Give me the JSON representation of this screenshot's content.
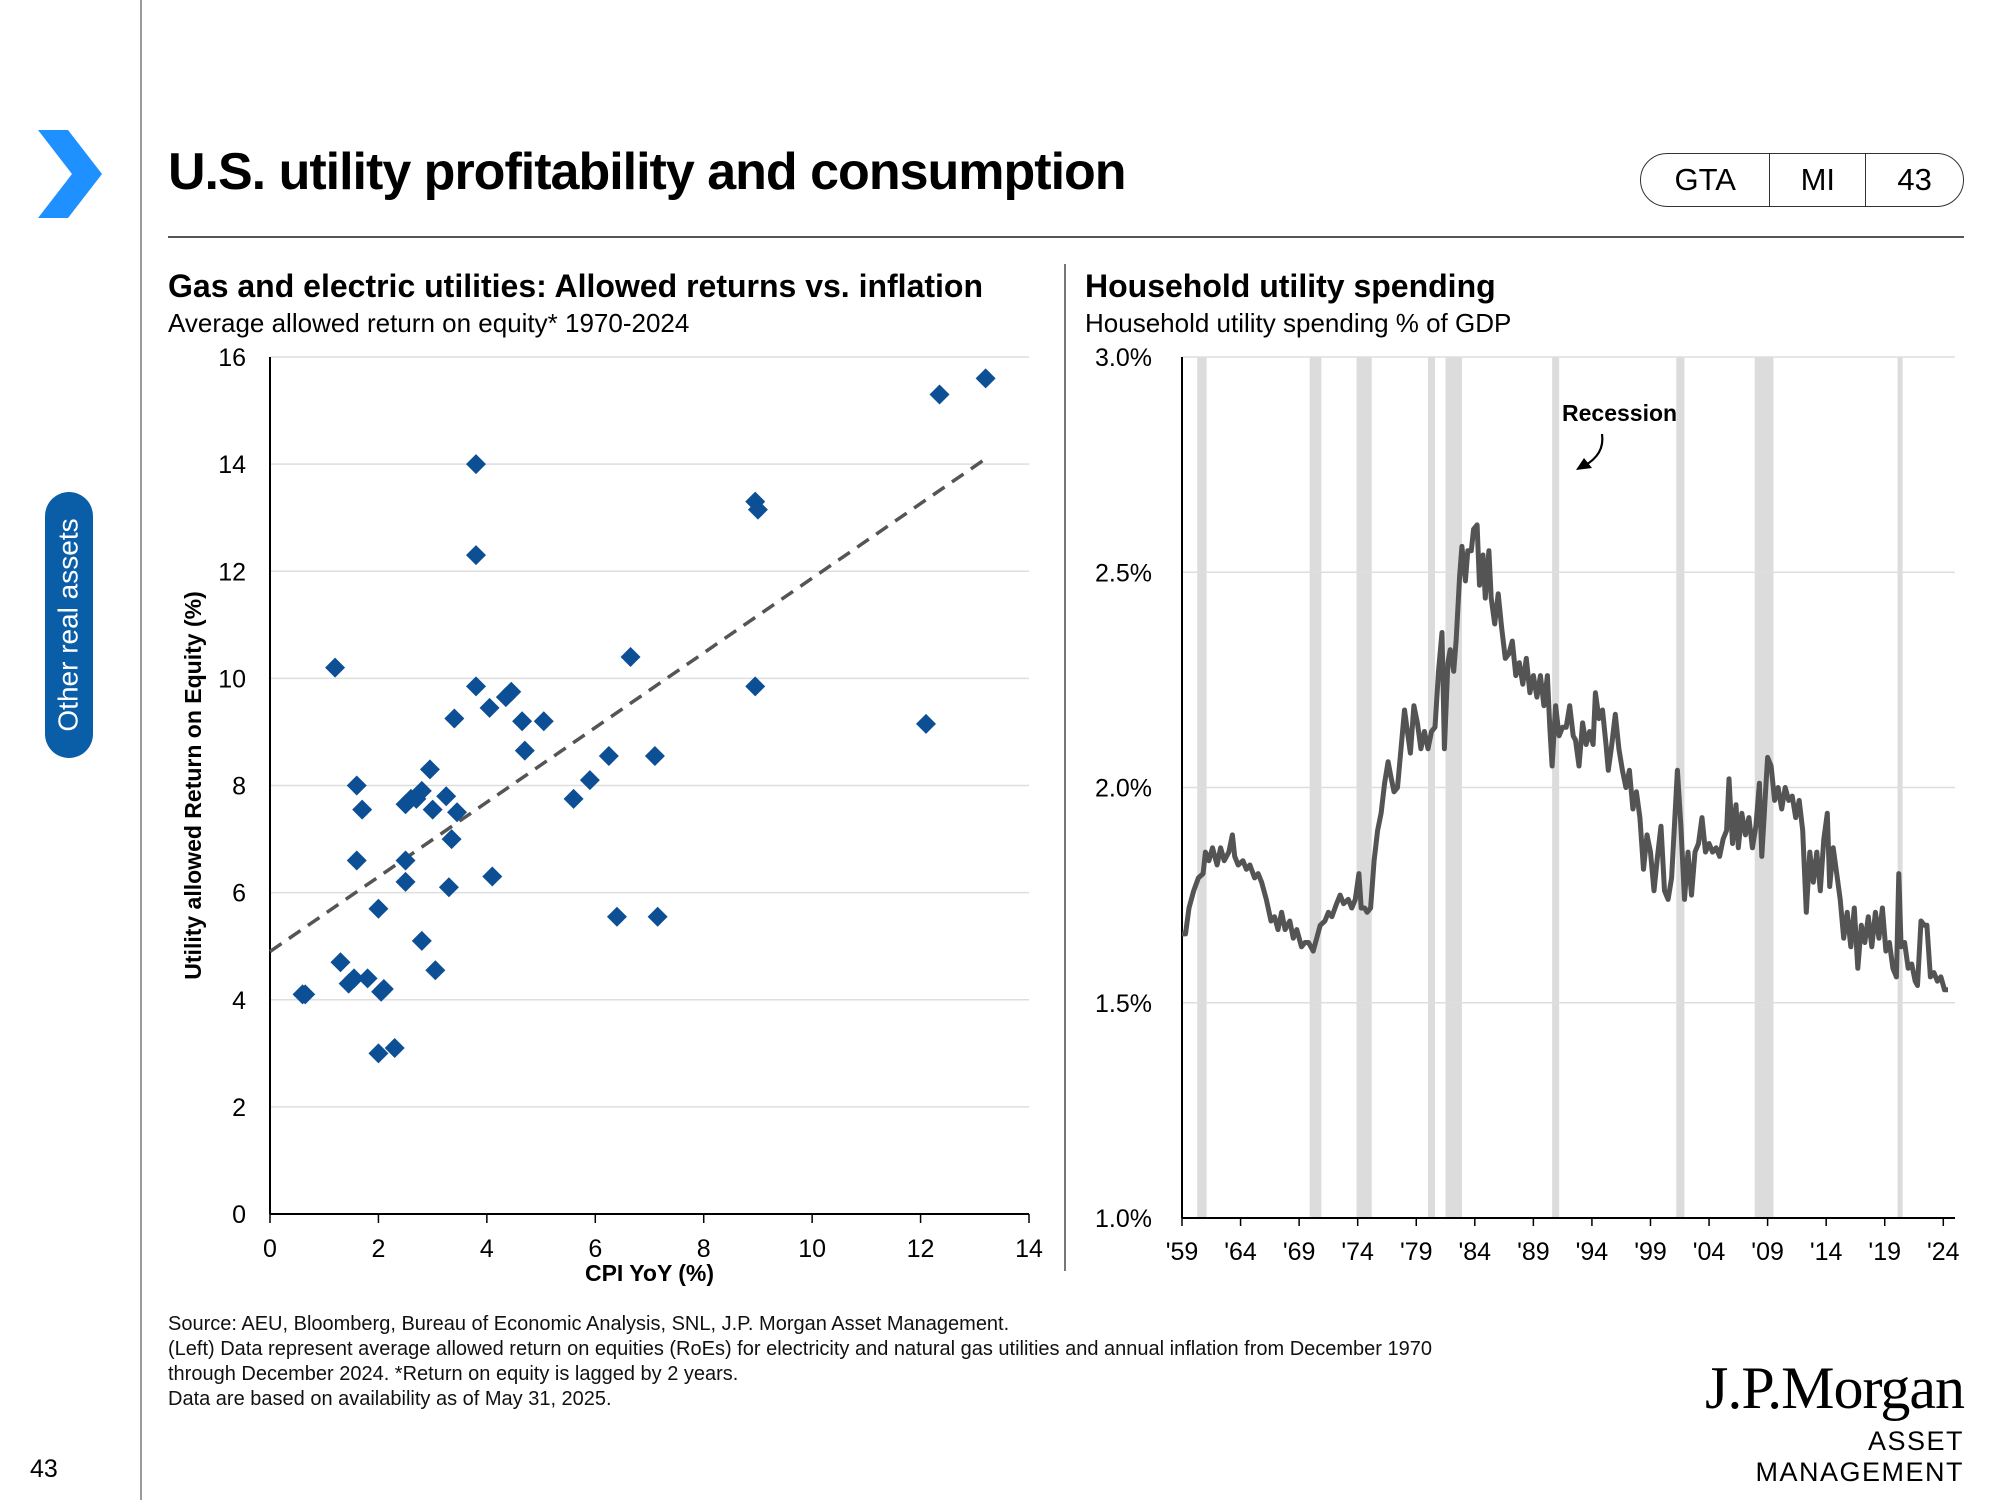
{
  "page": {
    "title": "U.S. utility profitability and consumption",
    "tags": [
      "GTA",
      "MI",
      "43"
    ],
    "side_tab": "Other real assets",
    "page_number": "43",
    "accent_color": "#0a5ea8",
    "chevron_color": "#1e90ff"
  },
  "left_chart": {
    "title": "Gas and electric utilities: Allowed returns vs. inflation",
    "subtitle": "Average allowed return on equity* 1970-2024"
  },
  "right_chart": {
    "title": "Household utility spending",
    "subtitle": "Household utility spending % of GDP"
  },
  "footnote": {
    "lines": [
      "Source: AEU, Bloomberg, Bureau of Economic Analysis, SNL, J.P. Morgan Asset Management.",
      "(Left) Data represent average allowed return on equities (RoEs) for electricity and natural gas utilities and annual inflation from December 1970",
      "through December 2024. *Return on equity is lagged by 2 years.",
      "Data are based on availability as of May 31, 2025."
    ]
  },
  "logo": {
    "name": "J.P.Morgan",
    "sub": "ASSET MANAGEMENT"
  },
  "chart_data": [
    {
      "type": "scatter",
      "title": "Gas and electric utilities: Allowed returns vs. inflation",
      "xlabel": "CPI YoY (%)",
      "ylabel": "Utility allowed Return on Equity (%)",
      "xlim": [
        0,
        14
      ],
      "ylim": [
        0,
        16
      ],
      "xticks": [
        "0",
        "2",
        "4",
        "6",
        "8",
        "10",
        "12",
        "14"
      ],
      "yticks": [
        "0",
        "2",
        "4",
        "6",
        "8",
        "10",
        "12",
        "14",
        "16"
      ],
      "marker_color": "#0d4f94",
      "trendline": {
        "x": [
          0,
          13.2
        ],
        "y": [
          4.9,
          14.1
        ],
        "style": "dashed",
        "color": "#555555"
      },
      "points": [
        [
          0.6,
          4.1
        ],
        [
          0.65,
          4.1
        ],
        [
          1.2,
          10.2
        ],
        [
          1.3,
          4.7
        ],
        [
          1.45,
          4.3
        ],
        [
          1.55,
          4.4
        ],
        [
          1.6,
          6.6
        ],
        [
          1.6,
          8.0
        ],
        [
          1.7,
          7.55
        ],
        [
          1.8,
          4.4
        ],
        [
          2.0,
          3.0
        ],
        [
          2.0,
          5.7
        ],
        [
          2.05,
          4.15
        ],
        [
          2.1,
          4.2
        ],
        [
          2.3,
          3.1
        ],
        [
          2.5,
          6.2
        ],
        [
          2.5,
          6.6
        ],
        [
          2.5,
          7.65
        ],
        [
          2.6,
          7.75
        ],
        [
          2.7,
          7.75
        ],
        [
          2.8,
          5.1
        ],
        [
          2.8,
          7.9
        ],
        [
          2.95,
          8.3
        ],
        [
          3.0,
          7.55
        ],
        [
          3.05,
          4.55
        ],
        [
          3.25,
          7.8
        ],
        [
          3.3,
          6.1
        ],
        [
          3.35,
          7.0
        ],
        [
          3.4,
          9.25
        ],
        [
          3.45,
          7.5
        ],
        [
          3.8,
          14.0
        ],
        [
          3.8,
          12.3
        ],
        [
          3.8,
          9.85
        ],
        [
          4.05,
          9.45
        ],
        [
          4.1,
          6.3
        ],
        [
          4.35,
          9.65
        ],
        [
          4.45,
          9.75
        ],
        [
          4.65,
          9.2
        ],
        [
          4.7,
          8.65
        ],
        [
          5.05,
          9.2
        ],
        [
          5.6,
          7.75
        ],
        [
          5.9,
          8.1
        ],
        [
          6.25,
          8.55
        ],
        [
          6.4,
          5.55
        ],
        [
          6.65,
          10.4
        ],
        [
          7.1,
          8.55
        ],
        [
          7.15,
          5.55
        ],
        [
          8.95,
          13.3
        ],
        [
          9.0,
          13.15
        ],
        [
          8.95,
          9.85
        ],
        [
          12.1,
          9.15
        ],
        [
          12.35,
          15.3
        ],
        [
          13.2,
          15.6
        ]
      ]
    },
    {
      "type": "line",
      "title": "Household utility spending",
      "ylabel": "Household utility spending % of GDP",
      "xlim": [
        1959,
        2025
      ],
      "ylim": [
        1.0,
        3.0
      ],
      "xticks": [
        "'59",
        "'64",
        "'69",
        "'74",
        "'79",
        "'84",
        "'89",
        "'94",
        "'99",
        "'04",
        "'09",
        "'14",
        "'19",
        "'24"
      ],
      "yticks": [
        "1.0%",
        "1.5%",
        "2.0%",
        "2.5%",
        "3.0%"
      ],
      "line_color": "#545454",
      "recession_color": "#dcdcdc",
      "annotation": "Recession",
      "recessions": [
        [
          1960.3,
          1961.1
        ],
        [
          1969.9,
          1970.9
        ],
        [
          1973.9,
          1975.2
        ],
        [
          1980.0,
          1980.6
        ],
        [
          1981.5,
          1982.9
        ],
        [
          1990.6,
          1991.2
        ],
        [
          2001.2,
          2001.9
        ],
        [
          2007.9,
          2009.5
        ],
        [
          2020.1,
          2020.4
        ]
      ],
      "series": [
        [
          1959.0,
          1.66
        ],
        [
          1959.3,
          1.66
        ],
        [
          1959.6,
          1.72
        ],
        [
          1960.0,
          1.76
        ],
        [
          1960.4,
          1.79
        ],
        [
          1960.8,
          1.8
        ],
        [
          1961.0,
          1.85
        ],
        [
          1961.3,
          1.83
        ],
        [
          1961.6,
          1.86
        ],
        [
          1962.0,
          1.82
        ],
        [
          1962.3,
          1.86
        ],
        [
          1962.6,
          1.83
        ],
        [
          1963.0,
          1.85
        ],
        [
          1963.3,
          1.89
        ],
        [
          1963.5,
          1.84
        ],
        [
          1963.8,
          1.82
        ],
        [
          1964.2,
          1.83
        ],
        [
          1964.5,
          1.81
        ],
        [
          1964.8,
          1.82
        ],
        [
          1965.2,
          1.79
        ],
        [
          1965.5,
          1.8
        ],
        [
          1965.8,
          1.78
        ],
        [
          1966.2,
          1.74
        ],
        [
          1966.6,
          1.69
        ],
        [
          1966.9,
          1.7
        ],
        [
          1967.2,
          1.67
        ],
        [
          1967.5,
          1.71
        ],
        [
          1967.8,
          1.67
        ],
        [
          1968.2,
          1.69
        ],
        [
          1968.5,
          1.65
        ],
        [
          1968.8,
          1.67
        ],
        [
          1969.2,
          1.63
        ],
        [
          1969.5,
          1.64
        ],
        [
          1969.8,
          1.64
        ],
        [
          1970.2,
          1.62
        ],
        [
          1970.5,
          1.65
        ],
        [
          1970.8,
          1.68
        ],
        [
          1971.2,
          1.69
        ],
        [
          1971.5,
          1.71
        ],
        [
          1971.8,
          1.7
        ],
        [
          1972.2,
          1.73
        ],
        [
          1972.5,
          1.75
        ],
        [
          1972.8,
          1.73
        ],
        [
          1973.2,
          1.74
        ],
        [
          1973.5,
          1.72
        ],
        [
          1973.8,
          1.74
        ],
        [
          1974.1,
          1.8
        ],
        [
          1974.3,
          1.72
        ],
        [
          1974.6,
          1.72
        ],
        [
          1974.8,
          1.71
        ],
        [
          1975.1,
          1.72
        ],
        [
          1975.4,
          1.83
        ],
        [
          1975.7,
          1.9
        ],
        [
          1976.0,
          1.94
        ],
        [
          1976.3,
          2.01
        ],
        [
          1976.6,
          2.06
        ],
        [
          1976.8,
          2.03
        ],
        [
          1977.1,
          1.99
        ],
        [
          1977.4,
          2.0
        ],
        [
          1977.7,
          2.09
        ],
        [
          1978.0,
          2.18
        ],
        [
          1978.3,
          2.12
        ],
        [
          1978.5,
          2.08
        ],
        [
          1978.8,
          2.19
        ],
        [
          1979.1,
          2.15
        ],
        [
          1979.4,
          2.09
        ],
        [
          1979.7,
          2.13
        ],
        [
          1980.0,
          2.09
        ],
        [
          1980.3,
          2.13
        ],
        [
          1980.6,
          2.14
        ],
        [
          1980.9,
          2.27
        ],
        [
          1981.2,
          2.36
        ],
        [
          1981.4,
          2.09
        ],
        [
          1981.7,
          2.29
        ],
        [
          1981.9,
          2.32
        ],
        [
          1982.2,
          2.27
        ],
        [
          1982.4,
          2.34
        ],
        [
          1982.7,
          2.49
        ],
        [
          1982.9,
          2.56
        ],
        [
          1983.2,
          2.48
        ],
        [
          1983.4,
          2.55
        ],
        [
          1983.7,
          2.55
        ],
        [
          1983.9,
          2.6
        ],
        [
          1984.2,
          2.61
        ],
        [
          1984.4,
          2.47
        ],
        [
          1984.7,
          2.54
        ],
        [
          1984.9,
          2.44
        ],
        [
          1985.2,
          2.55
        ],
        [
          1985.4,
          2.44
        ],
        [
          1985.7,
          2.38
        ],
        [
          1986.0,
          2.45
        ],
        [
          1986.3,
          2.37
        ],
        [
          1986.6,
          2.3
        ],
        [
          1986.9,
          2.31
        ],
        [
          1987.2,
          2.34
        ],
        [
          1987.5,
          2.26
        ],
        [
          1987.8,
          2.29
        ],
        [
          1988.1,
          2.24
        ],
        [
          1988.4,
          2.3
        ],
        [
          1988.7,
          2.22
        ],
        [
          1989.0,
          2.26
        ],
        [
          1989.3,
          2.21
        ],
        [
          1989.6,
          2.26
        ],
        [
          1989.9,
          2.19
        ],
        [
          1990.2,
          2.26
        ],
        [
          1990.4,
          2.14
        ],
        [
          1990.6,
          2.05
        ],
        [
          1990.9,
          2.19
        ],
        [
          1991.2,
          2.12
        ],
        [
          1991.5,
          2.14
        ],
        [
          1991.8,
          2.14
        ],
        [
          1992.1,
          2.19
        ],
        [
          1992.4,
          2.12
        ],
        [
          1992.6,
          2.11
        ],
        [
          1992.9,
          2.05
        ],
        [
          1993.2,
          2.15
        ],
        [
          1993.5,
          2.1
        ],
        [
          1993.8,
          2.13
        ],
        [
          1994.1,
          2.1
        ],
        [
          1994.3,
          2.22
        ],
        [
          1994.6,
          2.16
        ],
        [
          1994.9,
          2.18
        ],
        [
          1995.2,
          2.1
        ],
        [
          1995.4,
          2.04
        ],
        [
          1995.7,
          2.1
        ],
        [
          1996.0,
          2.17
        ],
        [
          1996.3,
          2.09
        ],
        [
          1996.6,
          2.04
        ],
        [
          1996.9,
          2.0
        ],
        [
          1997.2,
          2.04
        ],
        [
          1997.5,
          1.95
        ],
        [
          1997.8,
          1.99
        ],
        [
          1998.1,
          1.93
        ],
        [
          1998.4,
          1.81
        ],
        [
          1998.7,
          1.89
        ],
        [
          1999.0,
          1.85
        ],
        [
          1999.3,
          1.76
        ],
        [
          1999.6,
          1.84
        ],
        [
          1999.9,
          1.91
        ],
        [
          2000.2,
          1.76
        ],
        [
          2000.5,
          1.74
        ],
        [
          2000.8,
          1.79
        ],
        [
          2001.1,
          1.94
        ],
        [
          2001.3,
          2.04
        ],
        [
          2001.6,
          1.91
        ],
        [
          2001.9,
          1.74
        ],
        [
          2002.2,
          1.85
        ],
        [
          2002.5,
          1.75
        ],
        [
          2002.8,
          1.85
        ],
        [
          2003.1,
          1.87
        ],
        [
          2003.4,
          1.93
        ],
        [
          2003.7,
          1.85
        ],
        [
          2004.0,
          1.87
        ],
        [
          2004.3,
          1.85
        ],
        [
          2004.6,
          1.86
        ],
        [
          2004.9,
          1.84
        ],
        [
          2005.2,
          1.88
        ],
        [
          2005.5,
          1.9
        ],
        [
          2005.7,
          2.02
        ],
        [
          2006.0,
          1.87
        ],
        [
          2006.3,
          1.96
        ],
        [
          2006.5,
          1.86
        ],
        [
          2006.8,
          1.94
        ],
        [
          2007.1,
          1.89
        ],
        [
          2007.4,
          1.93
        ],
        [
          2007.7,
          1.86
        ],
        [
          2008.0,
          1.91
        ],
        [
          2008.3,
          2.01
        ],
        [
          2008.5,
          1.84
        ],
        [
          2008.8,
          1.98
        ],
        [
          2009.0,
          2.07
        ],
        [
          2009.3,
          2.05
        ],
        [
          2009.6,
          1.97
        ],
        [
          2009.9,
          2.0
        ],
        [
          2010.2,
          1.95
        ],
        [
          2010.5,
          2.0
        ],
        [
          2010.8,
          1.97
        ],
        [
          2011.1,
          1.98
        ],
        [
          2011.4,
          1.93
        ],
        [
          2011.7,
          1.97
        ],
        [
          2012.0,
          1.9
        ],
        [
          2012.3,
          1.71
        ],
        [
          2012.6,
          1.85
        ],
        [
          2012.9,
          1.78
        ],
        [
          2013.2,
          1.85
        ],
        [
          2013.5,
          1.76
        ],
        [
          2013.8,
          1.88
        ],
        [
          2014.1,
          1.94
        ],
        [
          2014.3,
          1.77
        ],
        [
          2014.6,
          1.86
        ],
        [
          2014.9,
          1.8
        ],
        [
          2015.2,
          1.74
        ],
        [
          2015.5,
          1.65
        ],
        [
          2015.8,
          1.71
        ],
        [
          2016.1,
          1.63
        ],
        [
          2016.4,
          1.72
        ],
        [
          2016.7,
          1.58
        ],
        [
          2017.0,
          1.68
        ],
        [
          2017.3,
          1.64
        ],
        [
          2017.6,
          1.7
        ],
        [
          2017.9,
          1.63
        ],
        [
          2018.2,
          1.71
        ],
        [
          2018.5,
          1.65
        ],
        [
          2018.8,
          1.72
        ],
        [
          2019.1,
          1.62
        ],
        [
          2019.4,
          1.64
        ],
        [
          2019.7,
          1.58
        ],
        [
          2020.0,
          1.56
        ],
        [
          2020.2,
          1.8
        ],
        [
          2020.4,
          1.63
        ],
        [
          2020.7,
          1.64
        ],
        [
          2021.0,
          1.58
        ],
        [
          2021.3,
          1.59
        ],
        [
          2021.6,
          1.55
        ],
        [
          2021.8,
          1.54
        ],
        [
          2022.1,
          1.69
        ],
        [
          2022.4,
          1.68
        ],
        [
          2022.6,
          1.68
        ],
        [
          2022.9,
          1.56
        ],
        [
          2023.2,
          1.57
        ],
        [
          2023.5,
          1.55
        ],
        [
          2023.8,
          1.56
        ],
        [
          2024.1,
          1.53
        ],
        [
          2024.4,
          1.53
        ]
      ]
    }
  ]
}
